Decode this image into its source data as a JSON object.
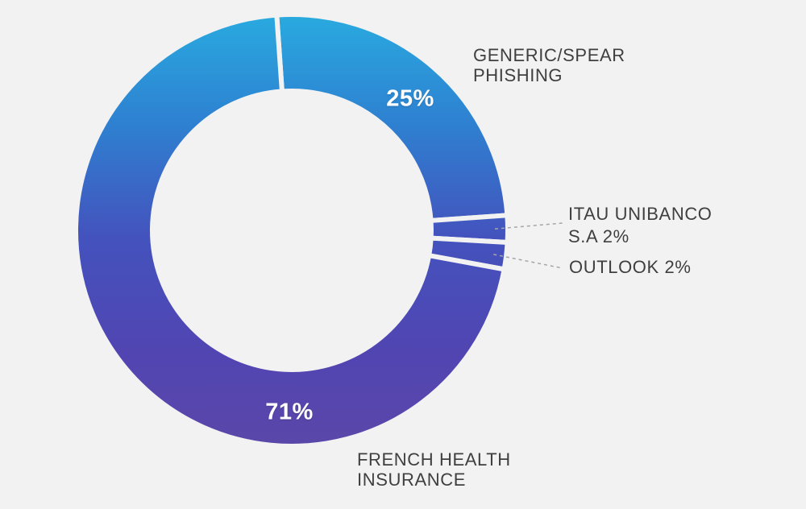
{
  "chart_data": {
    "type": "pie",
    "subtype": "donut",
    "title": "",
    "slices": [
      {
        "label": "GENERIC/SPEAR PHISHING",
        "value": 25,
        "pct_label": "25%"
      },
      {
        "label": "ITAU UNIBANCO S.A",
        "value": 2,
        "pct_label": "2%"
      },
      {
        "label": "OUTLOOK",
        "value": 2,
        "pct_label": "2%"
      },
      {
        "label": "FRENCH HEALTH INSURANCE",
        "value": 71,
        "pct_label": "71%"
      }
    ],
    "total": 100,
    "start_angle_deg": -4,
    "direction": "clockwise",
    "legend_position": "callouts",
    "grid": false,
    "ring_gradient_stops": [
      {
        "offset": 0,
        "color": "#29AADF"
      },
      {
        "offset": 0.25,
        "color": "#2E81D1"
      },
      {
        "offset": 0.52,
        "color": "#4452BD"
      },
      {
        "offset": 0.78,
        "color": "#5145B2"
      },
      {
        "offset": 1,
        "color": "#5B47A9"
      }
    ]
  },
  "callouts": {
    "generic": "GENERIC/SPEAR\nPHISHING",
    "itau": "ITAU UNIBANCO\nS.A 2%",
    "outlook": "OUTLOOK 2%",
    "french": "FRENCH HEALTH\nINSURANCE"
  },
  "colors": {
    "background": "#F2F2F2",
    "slice_gap": "#F2F2F2",
    "callout_text": "#3F3F3F",
    "leader_line": "#A6A6A6",
    "data_label_text": "#FFFFFF"
  }
}
